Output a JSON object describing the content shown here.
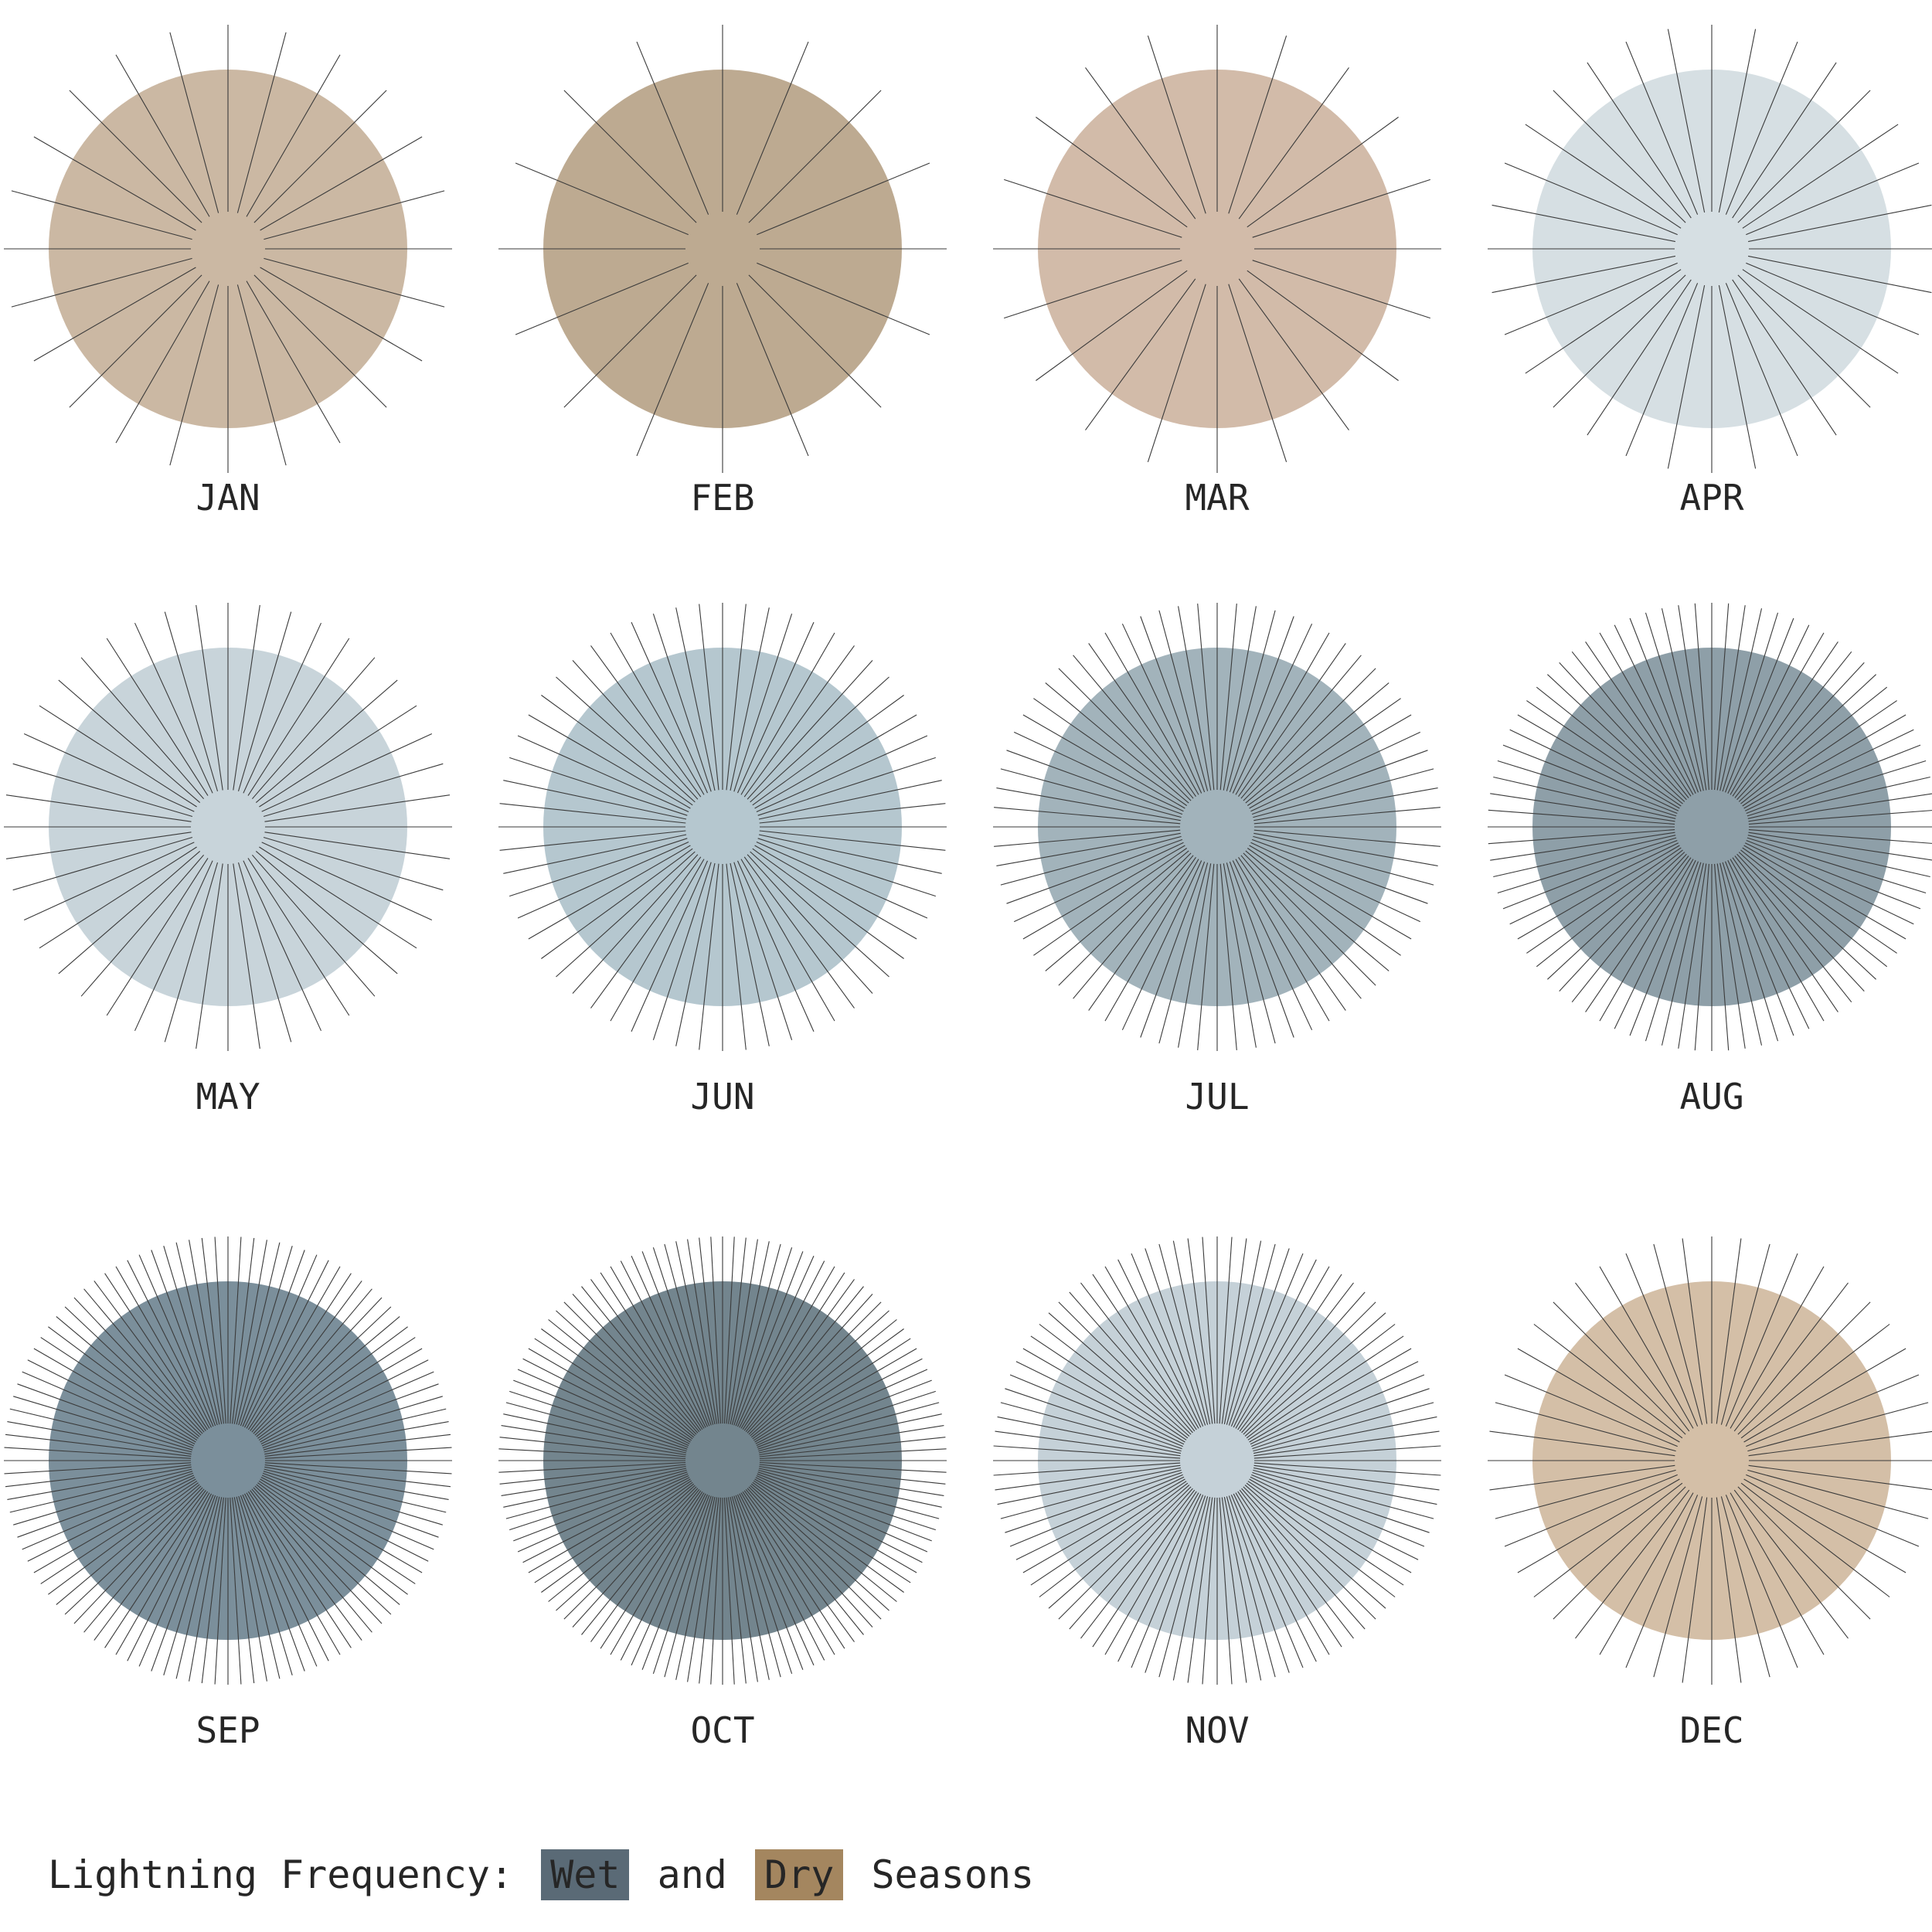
{
  "chart_data": {
    "type": "radial-burst-small-multiples",
    "title": {
      "prefix": "Lightning Frequency:",
      "wet_label": "Wet",
      "joiner": "and",
      "dry_label": "Dry",
      "suffix": "Seasons"
    },
    "colors": {
      "wet": "#5a6a76",
      "dry": "#a4865f"
    },
    "months": [
      {
        "label": "JAN",
        "season": "dry",
        "rays": 24,
        "fill": "#cbb8a3"
      },
      {
        "label": "FEB",
        "season": "dry",
        "rays": 16,
        "fill": "#bdaa91"
      },
      {
        "label": "MAR",
        "season": "dry",
        "rays": 20,
        "fill": "#d2bba9"
      },
      {
        "label": "APR",
        "season": "wet",
        "rays": 32,
        "fill": "#d6dfe3"
      },
      {
        "label": "MAY",
        "season": "wet",
        "rays": 44,
        "fill": "#c8d4da"
      },
      {
        "label": "JUN",
        "season": "wet",
        "rays": 60,
        "fill": "#b5c7cf"
      },
      {
        "label": "JUL",
        "season": "wet",
        "rays": 72,
        "fill": "#a2b3bb"
      },
      {
        "label": "AUG",
        "season": "wet",
        "rays": 84,
        "fill": "#8e9fa8"
      },
      {
        "label": "SEP",
        "season": "wet",
        "rays": 108,
        "fill": "#7b8f9b"
      },
      {
        "label": "OCT",
        "season": "wet",
        "rays": 120,
        "fill": "#73858e"
      },
      {
        "label": "NOV",
        "season": "wet",
        "rays": 96,
        "fill": "#c5d1d8"
      },
      {
        "label": "DEC",
        "season": "dry",
        "rays": 48,
        "fill": "#d4bfa7"
      }
    ]
  }
}
